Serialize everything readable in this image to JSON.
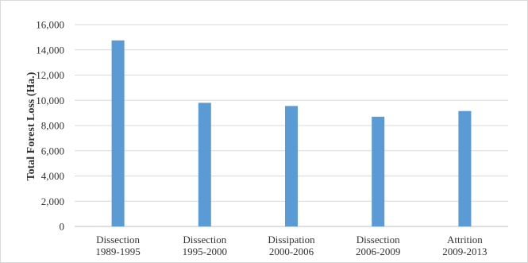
{
  "chart_data": {
    "type": "bar",
    "categories": [
      [
        "Dissection",
        "1989-1995"
      ],
      [
        "Dissection",
        "1995-2000"
      ],
      [
        "Dissipation",
        "2000-2006"
      ],
      [
        "Dissection",
        "2006-2009"
      ],
      [
        "Attrition",
        "2009-2013"
      ]
    ],
    "values": [
      14750,
      9800,
      9550,
      8700,
      9150
    ],
    "title": "",
    "xlabel": "",
    "ylabel": "Total Forest Loss (Ha.)",
    "ylim": [
      0,
      16000
    ],
    "yticks": [
      0,
      2000,
      4000,
      6000,
      8000,
      10000,
      12000,
      14000,
      16000
    ],
    "ytick_labels": [
      "0",
      "2,000",
      "4,000",
      "6,000",
      "8,000",
      "10,000",
      "12,000",
      "14,000",
      "16,000"
    ],
    "grid": true,
    "legend": "none",
    "bar_color": "#5b9bd5"
  }
}
